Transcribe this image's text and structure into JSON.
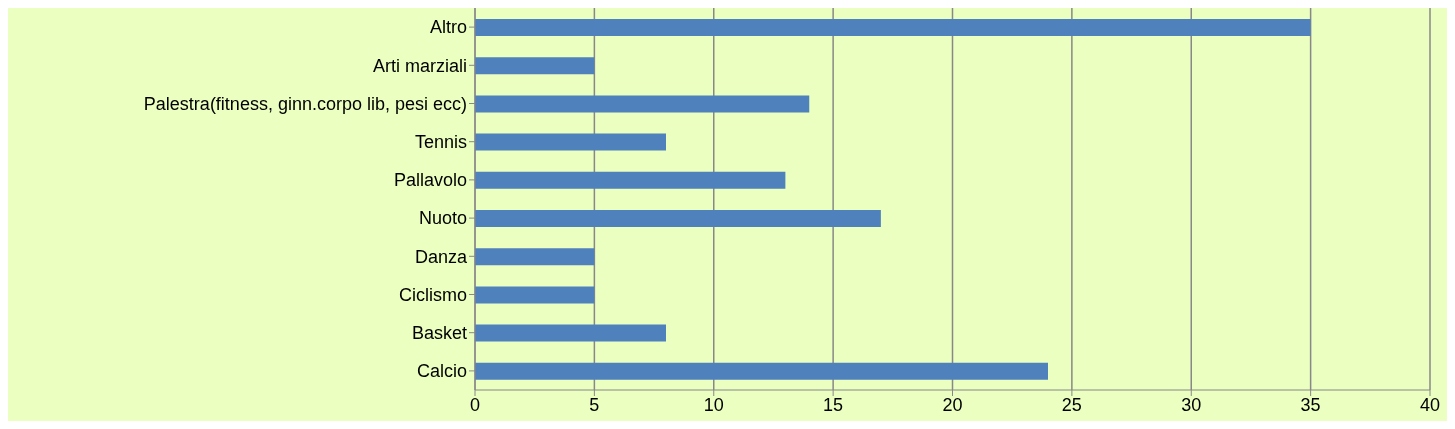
{
  "chart_data": {
    "type": "bar",
    "orientation": "horizontal",
    "categories": [
      "Altro",
      "Arti marziali",
      "Palestra(fitness, ginn.corpo lib, pesi ecc)",
      "Tennis",
      "Pallavolo",
      "Nuoto",
      "Danza",
      "Ciclismo",
      "Basket",
      "Calcio"
    ],
    "values": [
      35,
      5,
      14,
      8,
      13,
      17,
      5,
      5,
      8,
      24
    ],
    "color": "#4f81bd",
    "xlim": [
      0,
      40
    ],
    "xticks": [
      0,
      5,
      10,
      15,
      20,
      25,
      30,
      35,
      40
    ],
    "grid": "x",
    "legend": false
  }
}
